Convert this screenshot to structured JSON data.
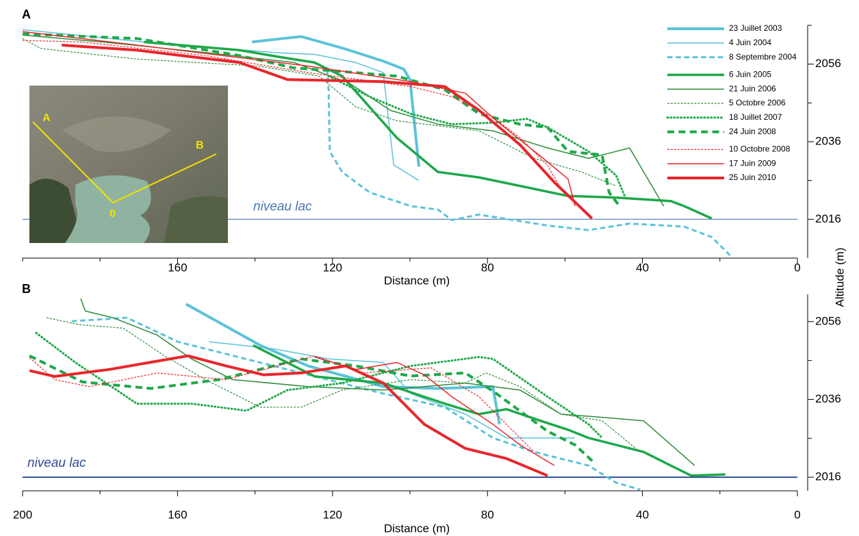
{
  "chart_data": [
    {
      "type": "line",
      "panel_label": "A",
      "x_label": "Distance (m)",
      "y_label": "Altitude (m)",
      "xlim": [
        200,
        0
      ],
      "xticks": [
        160,
        120,
        80,
        40,
        0
      ],
      "xminorticks": [
        200,
        180,
        140,
        100,
        60,
        20
      ],
      "ylim": [
        2006,
        2066
      ],
      "yticks": [
        2016,
        2036,
        2056
      ],
      "yminorticks": [
        2026,
        2046,
        2066
      ],
      "lake": {
        "label": "niveau lac",
        "value": 2016,
        "color": "#4a78b0"
      },
      "inset": {
        "labels": [
          "A",
          "B",
          "0"
        ]
      },
      "legend": "top-right",
      "series": [
        {
          "name": "23 Juillet 2003",
          "color": "#5bc3d8",
          "linewidth": 4,
          "linestyle": "solid",
          "x": [
            140.8,
            133,
            128,
            117,
            107,
            101.6,
            100,
            97.7
          ],
          "values": [
            2061.7,
            2062.6,
            2063.1,
            2060,
            2056.8,
            2054.7,
            2052,
            2029.6
          ]
        },
        {
          "name": "4 Juin 2004",
          "color": "#5bc3d8",
          "linewidth": 1.5,
          "linestyle": "solid",
          "x": [
            200,
            168.7,
            135,
            124.6,
            114,
            106.9,
            104.2,
            97.7
          ],
          "values": [
            2064.9,
            2061.7,
            2059,
            2058.5,
            2056.4,
            2053.8,
            2030,
            2026
          ]
        },
        {
          "name": "8 Septembre 2004",
          "color": "#5bc3d8",
          "linewidth": 3,
          "linestyle": "dashed",
          "x": [
            121.4,
            121,
            120.7,
            117.5,
            110.4,
            99.8,
            92.8,
            89.2,
            82.2,
            73.3,
            64.5,
            53.9,
            43.3,
            29.2,
            22.1,
            16.8
          ],
          "values": [
            2054.7,
            2049.4,
            2033.5,
            2028.2,
            2022.9,
            2019.4,
            2018.5,
            2015.8,
            2017.2,
            2015.8,
            2014.4,
            2013.2,
            2014.9,
            2014.1,
            2011.4,
            2006.1
          ]
        },
        {
          "name": "6 Juin 2005",
          "color": "#1ea84a",
          "linewidth": 3.5,
          "linestyle": "solid",
          "x": [
            168.7,
            144,
            133.4,
            124.6,
            117.5,
            103.4,
            92.8,
            82.2,
            71.6,
            59.2,
            46.8,
            32.7,
            29.2,
            22.1
          ],
          "values": [
            2061.7,
            2059.6,
            2057.8,
            2056.4,
            2052.9,
            2037,
            2028.2,
            2026.8,
            2024.6,
            2022,
            2021.6,
            2020.7,
            2019.4,
            2016.2
          ]
        },
        {
          "name": "21 Juin 2006",
          "color": "#2e8b3a",
          "linewidth": 1.5,
          "linestyle": "solid",
          "x": [
            200,
            179.3,
            152.8,
            129.9,
            115.7,
            105.1,
            92.8,
            78.6,
            64.5,
            53.9,
            43.3,
            34.5
          ],
          "values": [
            2063.5,
            2061.7,
            2059,
            2056.4,
            2051.1,
            2044.1,
            2040.5,
            2038.8,
            2034.4,
            2031.7,
            2034.4,
            2019.4
          ]
        },
        {
          "name": "5 Octobre 2006",
          "color": "#2e8b3a",
          "linewidth": 1.2,
          "linestyle": "dashed",
          "x": [
            200,
            195.2,
            170.5,
            139.1,
            123.5,
            114,
            103.4,
            82.2,
            68,
            55.7,
            46.8
          ],
          "values": [
            2062.6,
            2060,
            2057.3,
            2055.5,
            2052.9,
            2045,
            2041.4,
            2038.8,
            2031.7,
            2028.2,
            2024.6
          ]
        },
        {
          "name": "18 Juillet 2007",
          "color": "#1ea84a",
          "linewidth": 3,
          "linestyle": "dotted",
          "x": [
            121,
            110.4,
            99.8,
            89.2,
            78.6,
            69.8,
            64.5,
            53.9,
            46.8,
            44.2
          ],
          "values": [
            2052.9,
            2047.6,
            2043.2,
            2040.5,
            2040.9,
            2041.9,
            2039.7,
            2033.5,
            2027.3,
            2021.1
          ]
        },
        {
          "name": "24 Juin 2008",
          "color": "#1ea84a",
          "linewidth": 4,
          "linestyle": "dashed",
          "x": [
            200,
            170.5,
            144,
            129.9,
            117.5,
            103.4,
            91,
            82.2,
            71.6,
            64.5,
            59.2,
            50.4,
            48.6,
            45.9
          ],
          "values": [
            2063.8,
            2062.6,
            2058.2,
            2055,
            2054.1,
            2052.9,
            2049.4,
            2043.2,
            2040.5,
            2039.7,
            2033.5,
            2032.6,
            2022.9,
            2019.4
          ]
        },
        {
          "name": "10 Octobre 2008",
          "color": "#e8262b",
          "linewidth": 1.2,
          "linestyle": "dashed",
          "x": [
            200,
            184.6,
            152.8,
            126.3,
            99.8,
            89.2,
            78.6,
            71.6,
            64.5,
            61
          ],
          "values": [
            2062.1,
            2061.7,
            2058.2,
            2053.8,
            2050.2,
            2047.6,
            2042.3,
            2037,
            2029.9,
            2023.8
          ]
        },
        {
          "name": "17 Juin 2009",
          "color": "#e8262b",
          "linewidth": 1.5,
          "linestyle": "solid",
          "x": [
            200,
            170.5,
            126.3,
            99.8,
            85.7,
            77.7,
            64.5,
            59.2,
            57.4
          ],
          "values": [
            2064.4,
            2060.9,
            2055.5,
            2051.5,
            2048.5,
            2041.4,
            2030.8,
            2026.4,
            2019.4
          ]
        },
        {
          "name": "25 Juin 2010",
          "color": "#e8262b",
          "linewidth": 4,
          "linestyle": "solid",
          "x": [
            189.9,
            170.5,
            144,
            131.6,
            106.9,
            91,
            82.2,
            71.6,
            62.7,
            53
          ],
          "values": [
            2060.9,
            2059.6,
            2056.4,
            2052,
            2051.5,
            2050.2,
            2044.1,
            2035.2,
            2025.5,
            2016.2
          ]
        }
      ]
    },
    {
      "type": "line",
      "panel_label": "B",
      "x_label": "Distance (m)",
      "xlim": [
        200,
        0
      ],
      "xticks": [
        200,
        160,
        120,
        80,
        40,
        0
      ],
      "xminorticks": [
        180,
        140,
        100,
        60,
        20
      ],
      "ylim": [
        2012.5,
        2063
      ],
      "yticks": [
        2016,
        2036,
        2056
      ],
      "yminorticks": [
        2026,
        2046
      ],
      "lake": {
        "label": "niveau lac",
        "value": 2016,
        "color": "#2f4c9a"
      },
      "series": [
        {
          "color": "#5bc3d8",
          "linewidth": 4,
          "linestyle": "solid",
          "x": [
            157.8,
            138.7,
            126.3,
            106.9,
            92.8,
            78.6,
            76.9
          ],
          "values": [
            2060.5,
            2049.9,
            2044.6,
            2039.3,
            2038.8,
            2039.3,
            2029.6
          ]
        },
        {
          "color": "#5bc3d8",
          "linewidth": 1.5,
          "linestyle": "solid",
          "x": [
            151.9,
            135.2,
            121,
            106.9,
            99.8,
            85.7,
            75.1,
            57.4
          ],
          "values": [
            2050.8,
            2049,
            2046.4,
            2045.5,
            2037.5,
            2032.2,
            2026.1,
            2026.1
          ]
        },
        {
          "color": "#5bc3d8",
          "linewidth": 3,
          "linestyle": "dashed",
          "x": [
            187.3,
            173.1,
            159.9,
            128.1,
            106.9,
            91,
            78.6,
            68,
            53.9,
            46.8,
            40.6
          ],
          "values": [
            2056.1,
            2057,
            2050.8,
            2042.8,
            2037.5,
            2034,
            2026.1,
            2022.5,
            2019,
            2014.6,
            2012.8
          ]
        },
        {
          "color": "#1ea84a",
          "linewidth": 3.5,
          "linestyle": "solid",
          "x": [
            140.5,
            124.6,
            106.9,
            91,
            82.2,
            75.1,
            66.3,
            59.2,
            53.9,
            39.7,
            32.7,
            27.4,
            18.6
          ],
          "values": [
            2049.9,
            2041.9,
            2040.2,
            2034.9,
            2032.2,
            2033.5,
            2030.5,
            2028.2,
            2026.1,
            2022.5,
            2019,
            2016.4,
            2016.7
          ]
        },
        {
          "color": "#2e8b3a",
          "linewidth": 1.5,
          "linestyle": "solid",
          "x": [
            185,
            183.8,
            176.7,
            165.2,
            156.4,
            145.8,
            126.3,
            106.9,
            85.7,
            71.6,
            61,
            50.4,
            39.7,
            26.5
          ],
          "values": [
            2061.9,
            2058.7,
            2057,
            2052.5,
            2046.4,
            2041.1,
            2039.3,
            2038.4,
            2040.2,
            2038.4,
            2032.2,
            2031.4,
            2030.5,
            2019
          ]
        },
        {
          "color": "#2e8b3a",
          "linewidth": 1.2,
          "linestyle": "dashed",
          "x": [
            193.8,
            185.3,
            174,
            163.4,
            152.8,
            138.7,
            128.1,
            117.5,
            99.8,
            85.7,
            80.4,
            71.6,
            61,
            50.4,
            40.6
          ],
          "values": [
            2057,
            2055.2,
            2054.3,
            2047.2,
            2041.1,
            2034,
            2034,
            2038.4,
            2041.1,
            2040.2,
            2042.8,
            2039.3,
            2032.2,
            2030.5,
            2022.5
          ]
        },
        {
          "color": "#1ea84a",
          "linewidth": 3,
          "linestyle": "dotted",
          "x": [
            196.5,
            186.4,
            170.5,
            156.4,
            142.2,
            131.6,
            117.5,
            99.8,
            82.2,
            78.6,
            64.5,
            53.9,
            50.4
          ],
          "values": [
            2053.1,
            2045.5,
            2034.9,
            2034.9,
            2033.1,
            2038.4,
            2040.2,
            2044.6,
            2046.9,
            2046.4,
            2036.7,
            2029.6,
            2026.1
          ]
        },
        {
          "color": "#1ea84a",
          "linewidth": 4,
          "linestyle": "dashed",
          "x": [
            198.2,
            184.6,
            166.9,
            149.2,
            128.1,
            114,
            99.8,
            85.7,
            77.7,
            64.5,
            57.4,
            52.1
          ],
          "values": [
            2047.2,
            2040.5,
            2038.8,
            2041.1,
            2046.4,
            2044.6,
            2042,
            2042.8,
            2037.5,
            2027.8,
            2024.3,
            2019.4
          ]
        },
        {
          "color": "#e8262b",
          "linewidth": 1.2,
          "linestyle": "dashed",
          "x": [
            198.2,
            191.7,
            182.8,
            165.2,
            147.5,
            124.6,
            112.2,
            94.5,
            82.2,
            68
          ],
          "values": [
            2046.7,
            2041.1,
            2039.3,
            2042.8,
            2041.1,
            2047.2,
            2042.8,
            2044.1,
            2036.7,
            2022.5
          ]
        },
        {
          "color": "#e8262b",
          "linewidth": 1.5,
          "linestyle": "solid",
          "x": [
            124.6,
            113.9,
            103.4,
            96.3,
            89.2,
            78.6,
            71.6,
            62.7
          ],
          "values": [
            2046.9,
            2043.7,
            2045.5,
            2042.3,
            2036.7,
            2029.6,
            2024.3,
            2019
          ]
        },
        {
          "color": "#e8262b",
          "linewidth": 4,
          "linestyle": "solid",
          "x": [
            198.2,
            191.7,
            177.6,
            157.3,
            147.5,
            137.8,
            128.1,
            116.6,
            106.9,
            96.3,
            85.7,
            75.1,
            64.5
          ],
          "values": [
            2043.4,
            2041.9,
            2043.7,
            2047.2,
            2044.6,
            2042.3,
            2042.8,
            2044.6,
            2040.2,
            2029.6,
            2023.4,
            2020.8,
            2016.4
          ]
        }
      ]
    }
  ]
}
